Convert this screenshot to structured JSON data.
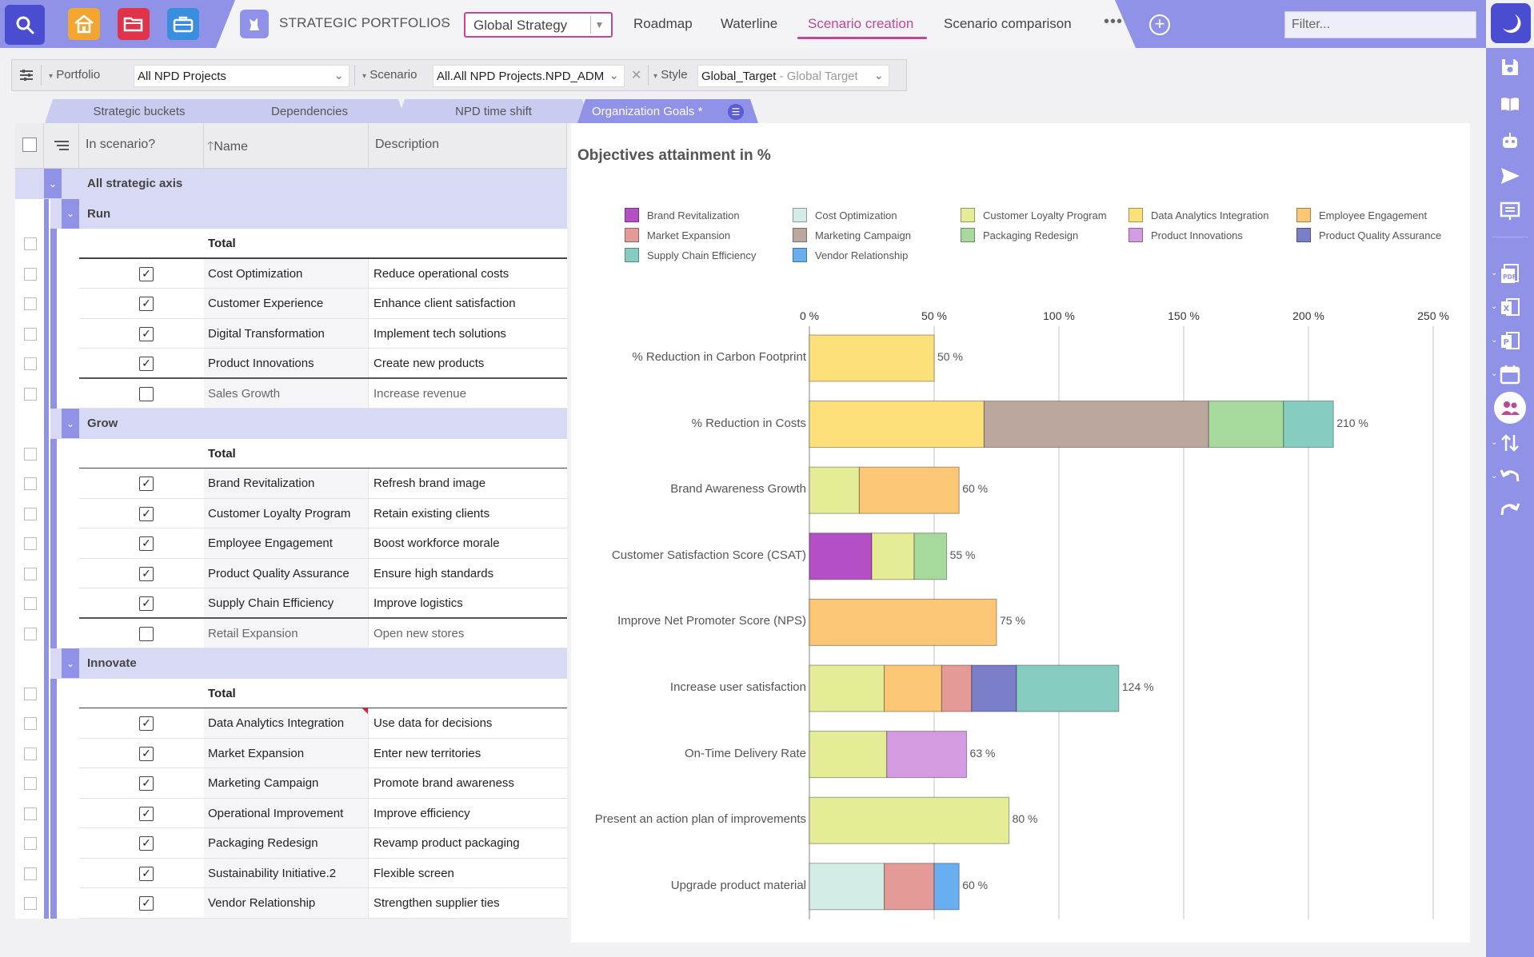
{
  "topbar": {
    "breadcrumb": "STRATEGIC PORTFOLIOS",
    "strategy": "Global Strategy",
    "tabs": [
      "Roadmap",
      "Waterline",
      "Scenario creation",
      "Scenario comparison"
    ],
    "more": "•••",
    "filter_placeholder": "Filter...",
    "accent": "#c0469a",
    "brand": "#8f92e6"
  },
  "filterbar": {
    "portfolio_label": "Portfolio",
    "portfolio_value": "All NPD Projects",
    "scenario_label": "Scenario",
    "scenario_value": "All.All NPD Projects.NPD_ADMIN",
    "style_label": "Style",
    "style_value": "Global_Target",
    "style_desc": "- Global Target"
  },
  "subtabs": [
    "Strategic buckets",
    "Dependencies",
    "NPD time shift",
    "Organization Goals *"
  ],
  "grid": {
    "headers": {
      "in_scenario": "In scenario?",
      "name": "Name",
      "description": "Description"
    },
    "root": "All strategic axis",
    "total_label": "Total",
    "groups": [
      {
        "name": "Run",
        "rows": [
          {
            "name": "Cost Optimization",
            "desc": "Reduce operational costs",
            "checked": true
          },
          {
            "name": "Customer Experience",
            "desc": "Enhance client satisfaction",
            "checked": true
          },
          {
            "name": "Digital Transformation",
            "desc": "Implement tech solutions",
            "checked": true
          },
          {
            "name": "Product Innovations",
            "desc": "Create new products",
            "checked": true
          },
          {
            "name": "Sales Growth",
            "desc": "Increase revenue",
            "checked": false
          }
        ]
      },
      {
        "name": "Grow",
        "rows": [
          {
            "name": "Brand Revitalization",
            "desc": "Refresh brand image",
            "checked": true
          },
          {
            "name": "Customer Loyalty Program",
            "desc": "Retain existing clients",
            "checked": true
          },
          {
            "name": "Employee Engagement",
            "desc": "Boost workforce morale",
            "checked": true
          },
          {
            "name": "Product Quality Assurance",
            "desc": "Ensure high standards",
            "checked": true
          },
          {
            "name": "Supply Chain Efficiency",
            "desc": "Improve logistics",
            "checked": true
          },
          {
            "name": "Retail Expansion",
            "desc": "Open new stores",
            "checked": false
          }
        ]
      },
      {
        "name": "Innovate",
        "rows": [
          {
            "name": "Data Analytics Integration",
            "desc": "Use data for decisions",
            "checked": true
          },
          {
            "name": "Market Expansion",
            "desc": "Enter new territories",
            "checked": true
          },
          {
            "name": "Marketing Campaign",
            "desc": "Promote brand awareness",
            "checked": true
          },
          {
            "name": "Operational Improvement",
            "desc": "Improve efficiency",
            "checked": true
          },
          {
            "name": "Packaging Redesign",
            "desc": "Revamp product packaging",
            "checked": true
          },
          {
            "name": "Sustainability Initiative.2",
            "desc": "Flexible screen",
            "checked": true
          },
          {
            "name": "Vendor Relationship",
            "desc": "Strengthen supplier ties",
            "checked": true
          }
        ]
      }
    ]
  },
  "chart_data": {
    "type": "bar",
    "orientation": "horizontal",
    "stacked": true,
    "title": "Objectives attainment in %",
    "xlim": [
      0,
      250
    ],
    "xticks": [
      0,
      50,
      100,
      150,
      200,
      250
    ],
    "tick_suffix": " %",
    "legend": [
      {
        "name": "Brand Revitalization",
        "color": "#b44fc6"
      },
      {
        "name": "Cost Optimization",
        "color": "#d4ece6"
      },
      {
        "name": "Customer Loyalty Program",
        "color": "#e4ec96"
      },
      {
        "name": "Data Analytics Integration",
        "color": "#fde07a"
      },
      {
        "name": "Employee Engagement",
        "color": "#fbc774"
      },
      {
        "name": "Market Expansion",
        "color": "#e49a96"
      },
      {
        "name": "Marketing Campaign",
        "color": "#bca79f"
      },
      {
        "name": "Packaging Redesign",
        "color": "#a7d89c"
      },
      {
        "name": "Product Innovations",
        "color": "#d49be0"
      },
      {
        "name": "Product Quality Assurance",
        "color": "#7b7ec9"
      },
      {
        "name": "Supply Chain Efficiency",
        "color": "#87ccc0"
      },
      {
        "name": "Vendor Relationship",
        "color": "#6aaef2"
      }
    ],
    "categories": [
      "% Reduction in Carbon Footprint",
      "% Reduction in Costs",
      "Brand Awareness Growth",
      "Customer Satisfaction Score (CSAT)",
      "Improve Net Promoter Score (NPS)",
      "Increase user satisfaction",
      "On-Time Delivery Rate",
      "Present an action plan of improvements",
      "Upgrade product material"
    ],
    "totals": [
      "50 %",
      "210 %",
      "60 %",
      "55 %",
      "75 %",
      "124 %",
      "63 %",
      "80 %",
      "60 %"
    ],
    "segments": [
      [
        {
          "s": "Data Analytics Integration",
          "v": 50
        }
      ],
      [
        {
          "s": "Data Analytics Integration",
          "v": 70
        },
        {
          "s": "Marketing Campaign",
          "v": 90
        },
        {
          "s": "Packaging Redesign",
          "v": 30
        },
        {
          "s": "Supply Chain Efficiency",
          "v": 20
        }
      ],
      [
        {
          "s": "Customer Loyalty Program",
          "v": 20
        },
        {
          "s": "Employee Engagement",
          "v": 40
        }
      ],
      [
        {
          "s": "Brand Revitalization",
          "v": 25
        },
        {
          "s": "Customer Loyalty Program",
          "v": 17
        },
        {
          "s": "Packaging Redesign",
          "v": 13
        }
      ],
      [
        {
          "s": "Employee Engagement",
          "v": 75
        }
      ],
      [
        {
          "s": "Customer Loyalty Program",
          "v": 30
        },
        {
          "s": "Employee Engagement",
          "v": 23
        },
        {
          "s": "Market Expansion",
          "v": 12
        },
        {
          "s": "Product Quality Assurance",
          "v": 18
        },
        {
          "s": "Supply Chain Efficiency",
          "v": 41
        }
      ],
      [
        {
          "s": "Customer Loyalty Program",
          "v": 31
        },
        {
          "s": "Product Innovations",
          "v": 32
        }
      ],
      [
        {
          "s": "Customer Loyalty Program",
          "v": 80
        }
      ],
      [
        {
          "s": "Cost Optimization",
          "v": 30
        },
        {
          "s": "Market Expansion",
          "v": 20
        },
        {
          "s": "Vendor Relationship",
          "v": 10
        }
      ]
    ]
  }
}
